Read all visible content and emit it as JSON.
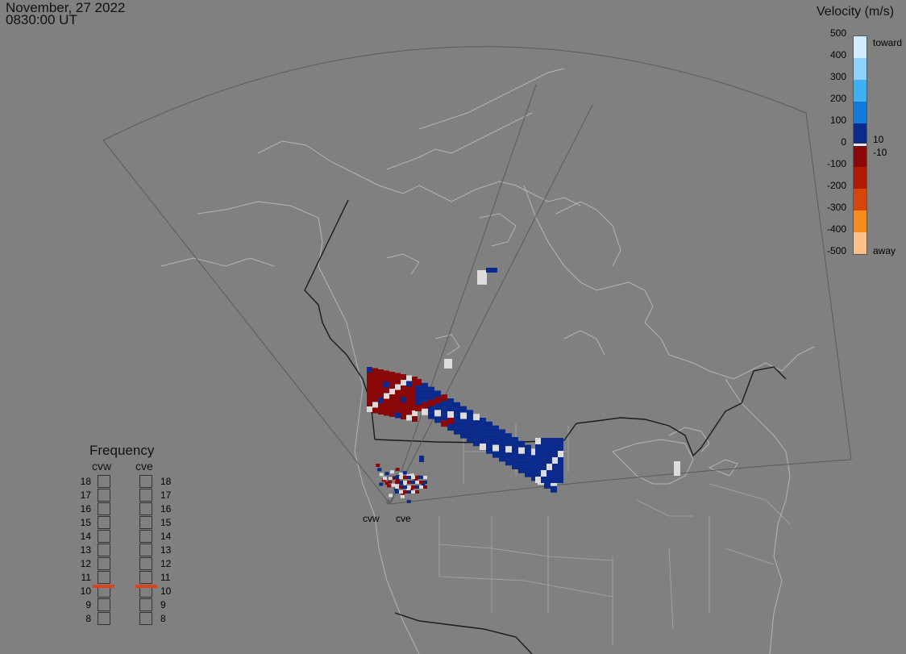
{
  "header": {
    "date": "November, 27 2022",
    "time": "0830:00 UT"
  },
  "legend": {
    "title": "Velocity (m/s)",
    "ticks": [
      "500",
      "400",
      "300",
      "200",
      "100",
      "0",
      "-100",
      "-200",
      "-300",
      "-400",
      "-500"
    ],
    "toward_label": "toward",
    "away_label": "away",
    "pos_threshold": "10",
    "neg_threshold": "-10",
    "colors": [
      "#d0ecff",
      "#8ed1fb",
      "#41b0f3",
      "#1279d9",
      "#0d4bb4",
      "#0a2a8c",
      "#8a0808",
      "#b01a04",
      "#d8450a",
      "#f58c1e",
      "#fbc08a"
    ]
  },
  "frequency": {
    "title": "Frequency",
    "radars": [
      "cvw",
      "cve"
    ],
    "levels": [
      "18",
      "17",
      "16",
      "15",
      "14",
      "13",
      "12",
      "11",
      "10",
      "9",
      "8"
    ],
    "selected": {
      "cvw": 10.8,
      "cve": 10.8
    }
  },
  "radar_labels": [
    "cvw",
    "cve"
  ],
  "colors": {
    "background": "#808080",
    "fov_outline": "#5a5a5a",
    "coastline": "#b0b0b0",
    "border": "#1a1a1a",
    "marker": "#d9441a"
  }
}
